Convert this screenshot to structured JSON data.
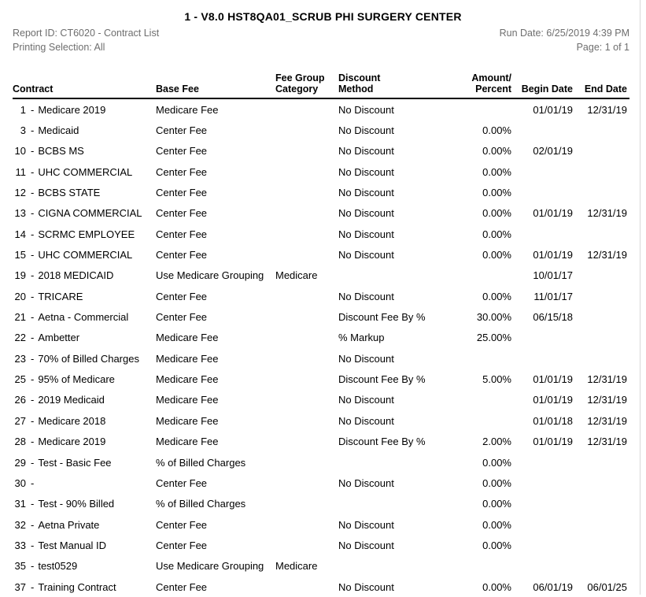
{
  "report": {
    "title": "1 - V8.0 HST8QA01_SCRUB PHI SURGERY CENTER",
    "report_id": "Report ID: CT6020 - Contract List",
    "printing_selection": "Printing Selection: All",
    "run_date": "Run Date: 6/25/2019 4:39 PM",
    "page": "Page: 1 of 1"
  },
  "colors": {
    "text": "#000000",
    "meta_text": "#6e6e6e",
    "header_rule": "#000000",
    "page_edge_line": "#d8d8d8",
    "background": "#ffffff"
  },
  "table": {
    "contract_separator": "-",
    "columns": [
      {
        "id": "contract",
        "line1": "",
        "line2": "Contract"
      },
      {
        "id": "base_fee",
        "line1": "",
        "line2": "Base Fee"
      },
      {
        "id": "fee_group",
        "line1": "Fee Group",
        "line2": "Category"
      },
      {
        "id": "discount",
        "line1": "Discount",
        "line2": "Method"
      },
      {
        "id": "amount",
        "line1": "Amount/",
        "line2": "Percent"
      },
      {
        "id": "begin",
        "line1": "",
        "line2": "Begin Date"
      },
      {
        "id": "end",
        "line1": "",
        "line2": "End Date"
      }
    ],
    "rows": [
      {
        "num": "1",
        "name": "Medicare 2019",
        "base_fee": "Medicare Fee",
        "fee_group": "",
        "discount": "No Discount",
        "amount": "",
        "begin": "01/01/19",
        "end": "12/31/19"
      },
      {
        "num": "3",
        "name": "Medicaid",
        "base_fee": "Center Fee",
        "fee_group": "",
        "discount": "No Discount",
        "amount": "0.00%",
        "begin": "",
        "end": ""
      },
      {
        "num": "10",
        "name": "BCBS MS",
        "base_fee": "Center Fee",
        "fee_group": "",
        "discount": "No Discount",
        "amount": "0.00%",
        "begin": "02/01/19",
        "end": ""
      },
      {
        "num": "11",
        "name": "UHC COMMERCIAL",
        "base_fee": "Center Fee",
        "fee_group": "",
        "discount": "No Discount",
        "amount": "0.00%",
        "begin": "",
        "end": ""
      },
      {
        "num": "12",
        "name": "BCBS STATE",
        "base_fee": "Center Fee",
        "fee_group": "",
        "discount": "No Discount",
        "amount": "0.00%",
        "begin": "",
        "end": ""
      },
      {
        "num": "13",
        "name": "CIGNA COMMERCIAL",
        "base_fee": "Center Fee",
        "fee_group": "",
        "discount": "No Discount",
        "amount": "0.00%",
        "begin": "01/01/19",
        "end": "12/31/19"
      },
      {
        "num": "14",
        "name": "SCRMC EMPLOYEE",
        "base_fee": "Center Fee",
        "fee_group": "",
        "discount": "No Discount",
        "amount": "0.00%",
        "begin": "",
        "end": ""
      },
      {
        "num": "15",
        "name": "UHC COMMERCIAL",
        "base_fee": "Center Fee",
        "fee_group": "",
        "discount": "No Discount",
        "amount": "0.00%",
        "begin": "01/01/19",
        "end": "12/31/19"
      },
      {
        "num": "19",
        "name": "2018 MEDICAID",
        "base_fee": "Use Medicare Grouping",
        "fee_group": "Medicare",
        "discount": "",
        "amount": "",
        "begin": "10/01/17",
        "end": ""
      },
      {
        "num": "20",
        "name": "TRICARE",
        "base_fee": "Center Fee",
        "fee_group": "",
        "discount": "No Discount",
        "amount": "0.00%",
        "begin": "11/01/17",
        "end": ""
      },
      {
        "num": "21",
        "name": "Aetna - Commercial",
        "base_fee": "Center Fee",
        "fee_group": "",
        "discount": "Discount Fee By %",
        "amount": "30.00%",
        "begin": "06/15/18",
        "end": ""
      },
      {
        "num": "22",
        "name": "Ambetter",
        "base_fee": "Medicare Fee",
        "fee_group": "",
        "discount": "% Markup",
        "amount": "25.00%",
        "begin": "",
        "end": ""
      },
      {
        "num": "23",
        "name": "70% of Billed Charges",
        "base_fee": "Medicare Fee",
        "fee_group": "",
        "discount": "No Discount",
        "amount": "",
        "begin": "",
        "end": ""
      },
      {
        "num": "25",
        "name": "95% of Medicare",
        "base_fee": "Medicare Fee",
        "fee_group": "",
        "discount": "Discount Fee By %",
        "amount": "5.00%",
        "begin": "01/01/19",
        "end": "12/31/19"
      },
      {
        "num": "26",
        "name": "2019 Medicaid",
        "base_fee": "Medicare Fee",
        "fee_group": "",
        "discount": "No Discount",
        "amount": "",
        "begin": "01/01/19",
        "end": "12/31/19"
      },
      {
        "num": "27",
        "name": "Medicare 2018",
        "base_fee": "Medicare Fee",
        "fee_group": "",
        "discount": "No Discount",
        "amount": "",
        "begin": "01/01/18",
        "end": "12/31/19"
      },
      {
        "num": "28",
        "name": "Medicare 2019",
        "base_fee": "Medicare Fee",
        "fee_group": "",
        "discount": "Discount Fee By %",
        "amount": "2.00%",
        "begin": "01/01/19",
        "end": "12/31/19"
      },
      {
        "num": "29",
        "name": "Test - Basic Fee",
        "base_fee": "% of Billed Charges",
        "fee_group": "",
        "discount": "",
        "amount": "0.00%",
        "begin": "",
        "end": ""
      },
      {
        "num": "30",
        "name": "",
        "base_fee": "Center Fee",
        "fee_group": "",
        "discount": "No Discount",
        "amount": "0.00%",
        "begin": "",
        "end": ""
      },
      {
        "num": "31",
        "name": "Test - 90% Billed",
        "base_fee": "% of Billed Charges",
        "fee_group": "",
        "discount": "",
        "amount": "0.00%",
        "begin": "",
        "end": ""
      },
      {
        "num": "32",
        "name": "Aetna Private",
        "base_fee": "Center Fee",
        "fee_group": "",
        "discount": "No Discount",
        "amount": "0.00%",
        "begin": "",
        "end": ""
      },
      {
        "num": "33",
        "name": "Test Manual ID",
        "base_fee": "Center Fee",
        "fee_group": "",
        "discount": "No Discount",
        "amount": "0.00%",
        "begin": "",
        "end": ""
      },
      {
        "num": "35",
        "name": "test0529",
        "base_fee": "Use Medicare Grouping",
        "fee_group": "Medicare",
        "discount": "",
        "amount": "",
        "begin": "",
        "end": ""
      },
      {
        "num": "37",
        "name": "Training Contract",
        "base_fee": "Center Fee",
        "fee_group": "",
        "discount": "No Discount",
        "amount": "0.00%",
        "begin": "06/01/19",
        "end": "06/01/25"
      }
    ]
  }
}
